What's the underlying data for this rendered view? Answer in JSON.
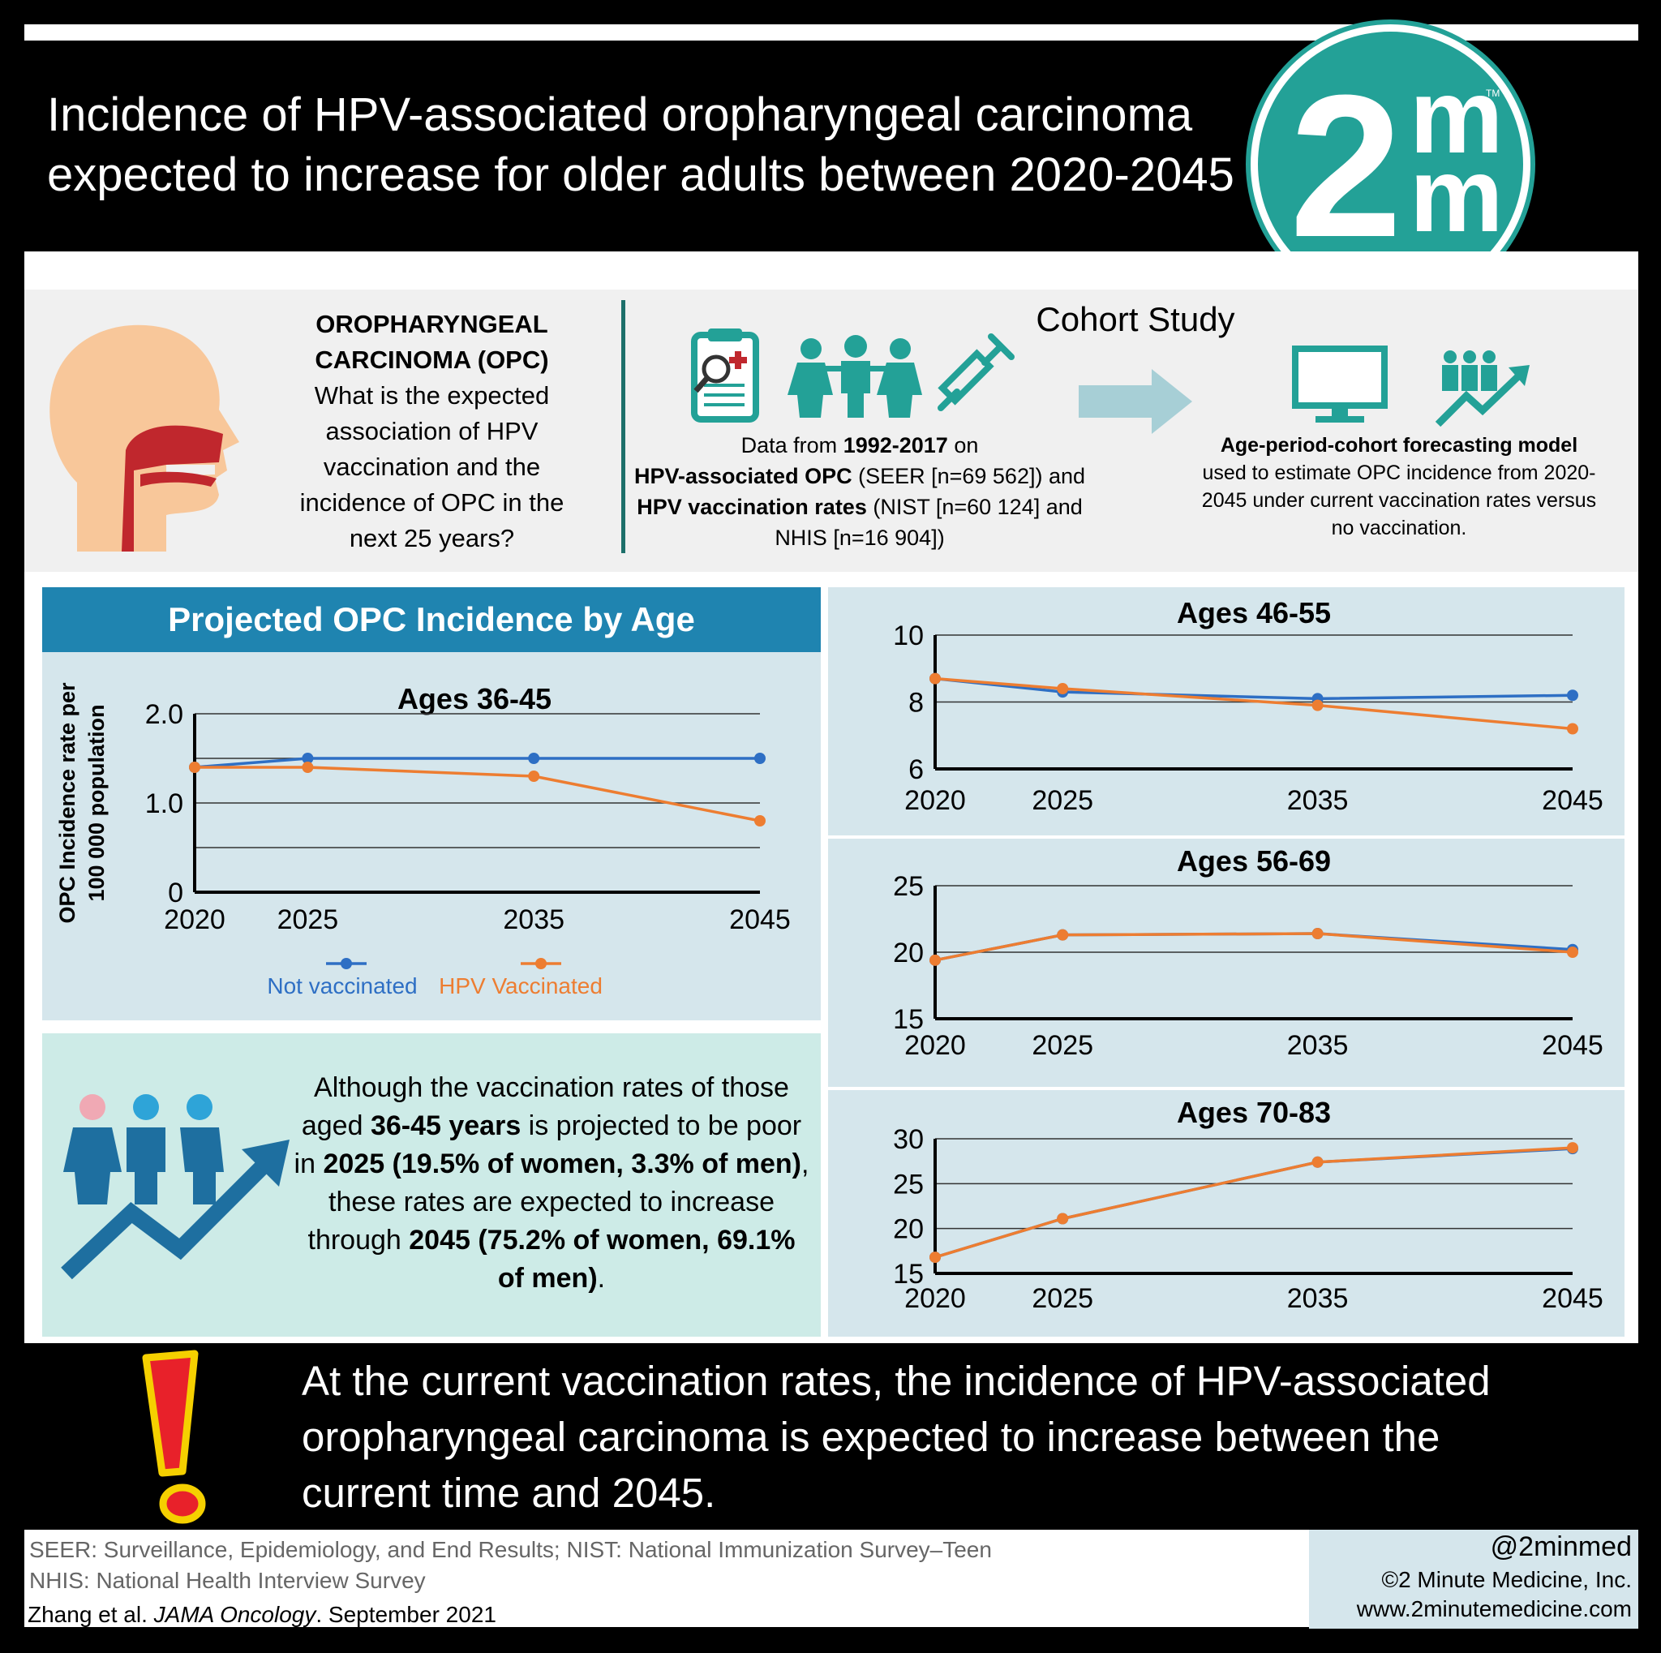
{
  "header": {
    "title_line1": "Incidence of HPV-associated oropharyngeal carcinoma",
    "title_line2": "expected to increase for older adults between 2020-2045"
  },
  "logo": {
    "big": "2",
    "m1": "m",
    "m2": "m",
    "tm": "TM"
  },
  "intro": {
    "heading_line1": "OROPHARYNGEAL",
    "heading_line2": "CARCINOMA (OPC)",
    "question": "What is the expected association of HPV vaccination and the incidence of OPC in the next 25 years?",
    "cohort_title": "Cohort Study",
    "data_pre": "Data from ",
    "data_years": "1992-2017",
    "data_on": " on",
    "data_hpv_opc": "HPV-associated OPC",
    "data_seer": " (SEER [n=69 562]) and",
    "data_vax": "HPV vaccination rates",
    "data_nist": " (NIST [n=60 124] and NHIS [n=16 904])",
    "model_bold": "Age-period-cohort forecasting model",
    "model_rest": "used to estimate OPC incidence from 2020-2045 under current vaccination rates versus no vaccination."
  },
  "colors": {
    "not_vaccinated": "#2e6fc4",
    "hpv_vaccinated": "#ed7d31",
    "teal": "#23a197",
    "panel": "#d5e6ec"
  },
  "panel_title": "Projected OPC Incidence by Age",
  "chart_data": [
    {
      "type": "line",
      "title": "Ages 36-45",
      "ylabel": "OPC Incidence rate per 100 000 population",
      "x": [
        "2020",
        "2025",
        "2035",
        "2045"
      ],
      "ylim": [
        0,
        2.0
      ],
      "yticks": [
        "0",
        "1.0",
        "2.0"
      ],
      "series": [
        {
          "name": "Not vaccinated",
          "values": [
            1.4,
            1.5,
            1.5,
            1.5
          ]
        },
        {
          "name": "HPV Vaccinated",
          "values": [
            1.4,
            1.4,
            1.3,
            0.8
          ]
        }
      ]
    },
    {
      "type": "line",
      "title": "Ages 46-55",
      "x": [
        "2020",
        "2025",
        "2035",
        "2045"
      ],
      "ylim": [
        6,
        10
      ],
      "yticks": [
        "6",
        "8",
        "10"
      ],
      "series": [
        {
          "name": "Not vaccinated",
          "values": [
            8.7,
            8.3,
            8.1,
            8.2
          ]
        },
        {
          "name": "HPV Vaccinated",
          "values": [
            8.7,
            8.4,
            7.9,
            7.2
          ]
        }
      ]
    },
    {
      "type": "line",
      "title": "Ages 56-69",
      "x": [
        "2020",
        "2025",
        "2035",
        "2045"
      ],
      "ylim": [
        15,
        25
      ],
      "yticks": [
        "15",
        "20",
        "25"
      ],
      "series": [
        {
          "name": "Not vaccinated",
          "values": [
            19.4,
            21.3,
            21.4,
            20.2
          ]
        },
        {
          "name": "HPV Vaccinated",
          "values": [
            19.4,
            21.3,
            21.4,
            20.0
          ]
        }
      ]
    },
    {
      "type": "line",
      "title": "Ages 70-83",
      "x": [
        "2020",
        "2025",
        "2035",
        "2045"
      ],
      "ylim": [
        15,
        30
      ],
      "yticks": [
        "15",
        "20",
        "25",
        "30"
      ],
      "series": [
        {
          "name": "Not vaccinated",
          "values": [
            16.8,
            21.1,
            27.4,
            28.9
          ]
        },
        {
          "name": "HPV Vaccinated",
          "values": [
            16.8,
            21.1,
            27.4,
            29.0
          ]
        }
      ]
    }
  ],
  "legend": {
    "not_vaccinated": "Not vaccinated",
    "hpv_vaccinated": "HPV Vaccinated"
  },
  "vax_text": {
    "p1": "Although the vaccination rates of those aged ",
    "b1": "36-45 years",
    "p2": " is projected to be poor in ",
    "b2": "2025 (19.5% of women, 3.3% of men)",
    "p3": ", these rates are expected to increase through ",
    "b3": "2045 (75.2% of women, 69.1% of men)",
    "p4": "."
  },
  "conclusion": "At the current vaccination rates, the incidence of HPV-associated oropharyngeal carcinoma is expected to increase between the current time and 2045.",
  "footer": {
    "abbr_line1": "SEER: Surveillance, Epidemiology, and End Results; NIST: National Immunization Survey–Teen",
    "abbr_line2": "NHIS: National Health Interview Survey",
    "cite_authors": "Zhang et al. ",
    "cite_journal": "JAMA Oncology",
    "cite_date": ". September 2021",
    "handle": "@2minmed",
    "copyright": "©2 Minute Medicine, Inc.",
    "url": "www.2minutemedicine.com"
  }
}
